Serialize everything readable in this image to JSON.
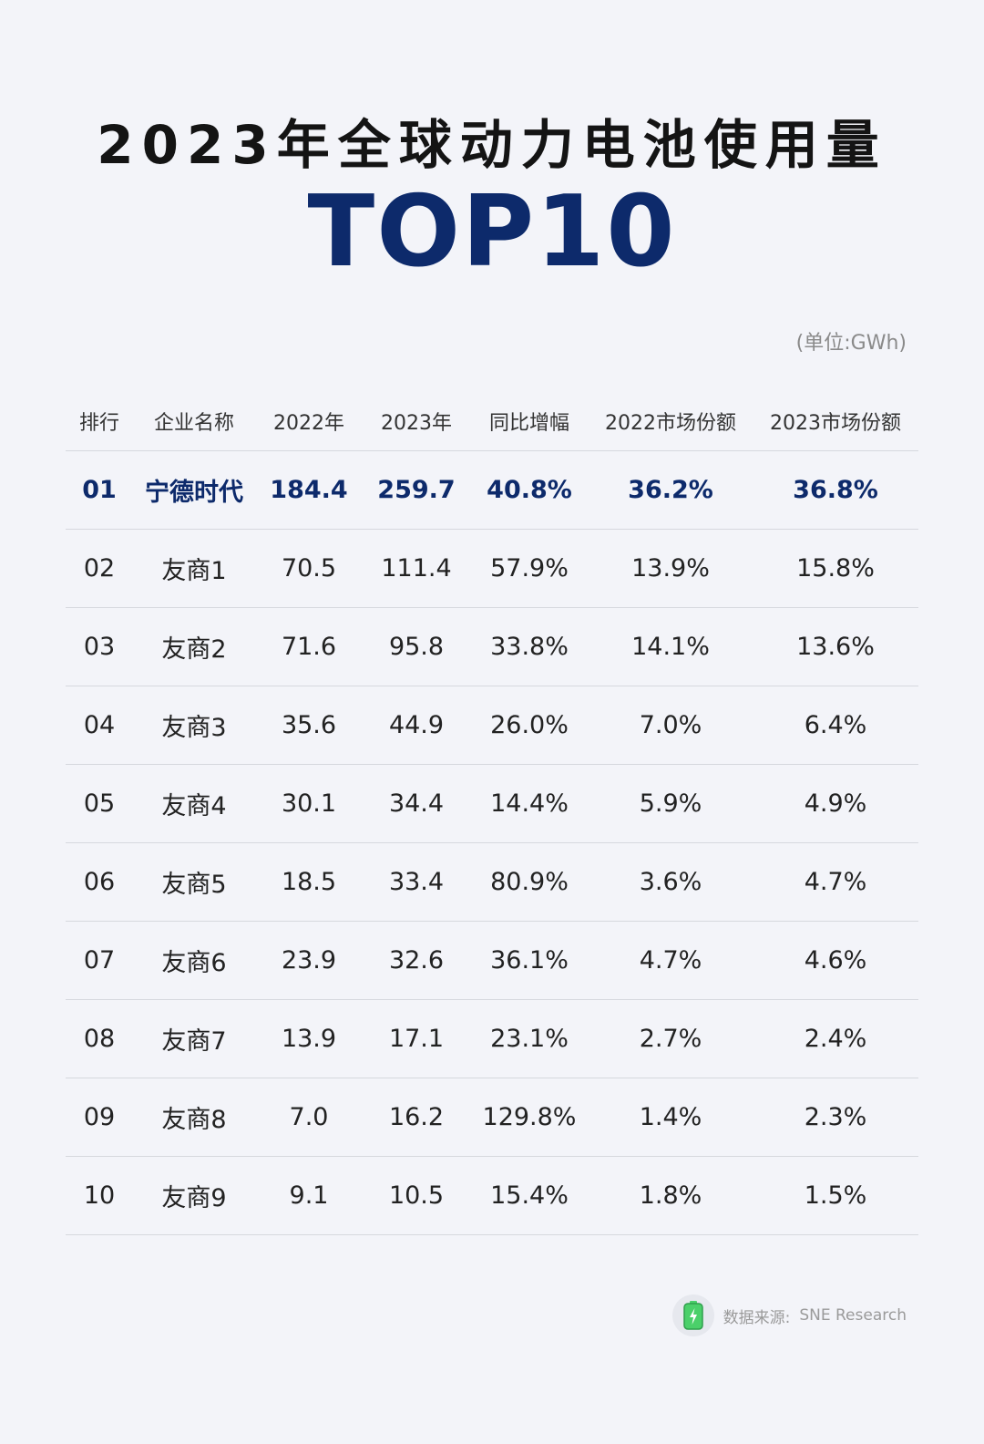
{
  "title_line1": "2023年全球动力电池使用量",
  "title_line2": "TOP10",
  "unit": "(单位:GWh)",
  "footer": {
    "source_label": "数据来源:",
    "source_name": "SNE Research",
    "icon": "battery-icon"
  },
  "colors": {
    "accent": "#0d2a6b",
    "background": "#f3f4f9",
    "battery": "#4bd06a"
  },
  "chart_data": {
    "type": "table",
    "columns": [
      "排行",
      "企业名称",
      "2022年",
      "2023年",
      "同比增幅",
      "2022市场份额",
      "2023市场份额"
    ],
    "rows": [
      [
        "01",
        "宁德时代",
        "184.4",
        "259.7",
        "40.8%",
        "36.2%",
        "36.8%"
      ],
      [
        "02",
        "友商1",
        "70.5",
        "111.4",
        "57.9%",
        "13.9%",
        "15.8%"
      ],
      [
        "03",
        "友商2",
        "71.6",
        "95.8",
        "33.8%",
        "14.1%",
        "13.6%"
      ],
      [
        "04",
        "友商3",
        "35.6",
        "44.9",
        "26.0%",
        "7.0%",
        "6.4%"
      ],
      [
        "05",
        "友商4",
        "30.1",
        "34.4",
        "14.4%",
        "5.9%",
        "4.9%"
      ],
      [
        "06",
        "友商5",
        "18.5",
        "33.4",
        "80.9%",
        "3.6%",
        "4.7%"
      ],
      [
        "07",
        "友商6",
        "23.9",
        "32.6",
        "36.1%",
        "4.7%",
        "4.6%"
      ],
      [
        "08",
        "友商7",
        "13.9",
        "17.1",
        "23.1%",
        "2.7%",
        "2.4%"
      ],
      [
        "09",
        "友商8",
        "7.0",
        "16.2",
        "129.8%",
        "1.4%",
        "2.3%"
      ],
      [
        "10",
        "友商9",
        "9.1",
        "10.5",
        "15.4%",
        "1.8%",
        "1.5%"
      ]
    ],
    "highlight_row": 0
  }
}
